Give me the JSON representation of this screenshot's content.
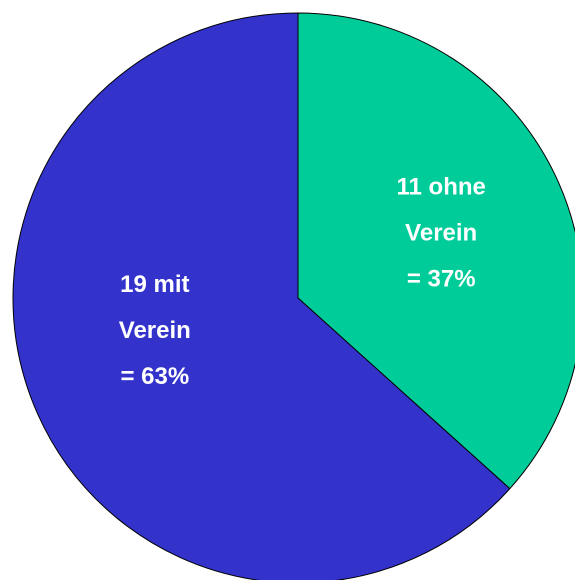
{
  "chart_data": {
    "type": "pie",
    "categories": [
      "ohne Verein",
      "mit Verein"
    ],
    "values": [
      11,
      19
    ],
    "value_labels": [
      [
        "11 ohne",
        "Verein",
        "= 37%"
      ],
      [
        "19 mit",
        "Verein",
        "= 63%"
      ]
    ],
    "colors": [
      "#00cc99",
      "#3333cc"
    ]
  }
}
